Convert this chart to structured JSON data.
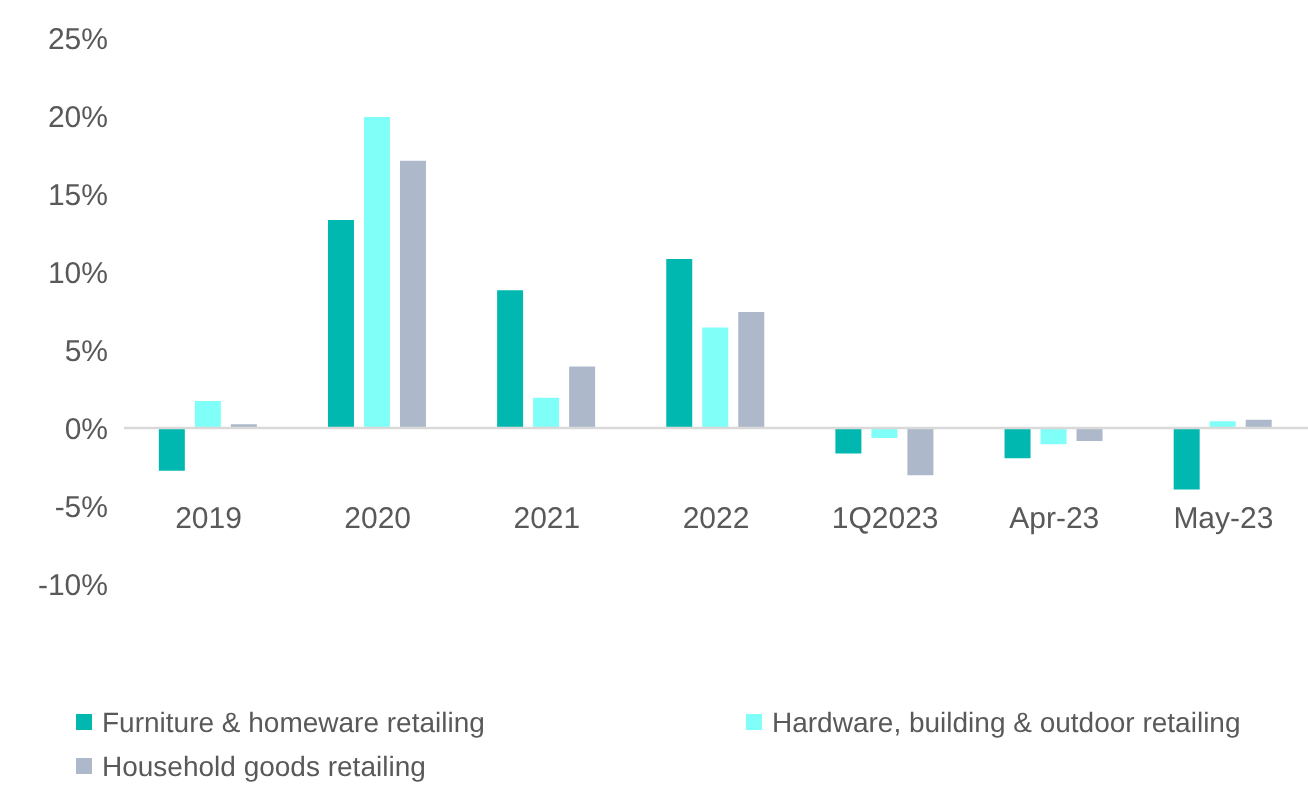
{
  "chart_data": {
    "type": "bar",
    "categories": [
      "2019",
      "2020",
      "2021",
      "2022",
      "1Q2023",
      "Apr-23",
      "May-23"
    ],
    "series": [
      {
        "name": "Furniture & homeware retailing",
        "color": "#00b8b0",
        "values": [
          -2.8,
          13.4,
          8.9,
          10.9,
          -1.7,
          -2.0,
          -4.0
        ]
      },
      {
        "name": "Hardware, building & outdoor retailing",
        "color": "#80fff8",
        "values": [
          1.8,
          20.0,
          2.0,
          6.5,
          -0.7,
          -1.1,
          0.5
        ]
      },
      {
        "name": "Household goods retailing",
        "color": "#adb8ca",
        "values": [
          0.3,
          17.2,
          4.0,
          7.5,
          -3.1,
          -0.9,
          0.6
        ]
      }
    ],
    "ylim": [
      -10,
      25
    ],
    "yticks": [
      {
        "value": -10,
        "label": "-10%"
      },
      {
        "value": -5,
        "label": "-5%"
      },
      {
        "value": 0,
        "label": "0%"
      },
      {
        "value": 5,
        "label": "5%"
      },
      {
        "value": 10,
        "label": "10%"
      },
      {
        "value": 15,
        "label": "15%"
      },
      {
        "value": 20,
        "label": "20%"
      },
      {
        "value": 25,
        "label": "25%"
      }
    ],
    "grid": false,
    "legend": "bottom"
  }
}
